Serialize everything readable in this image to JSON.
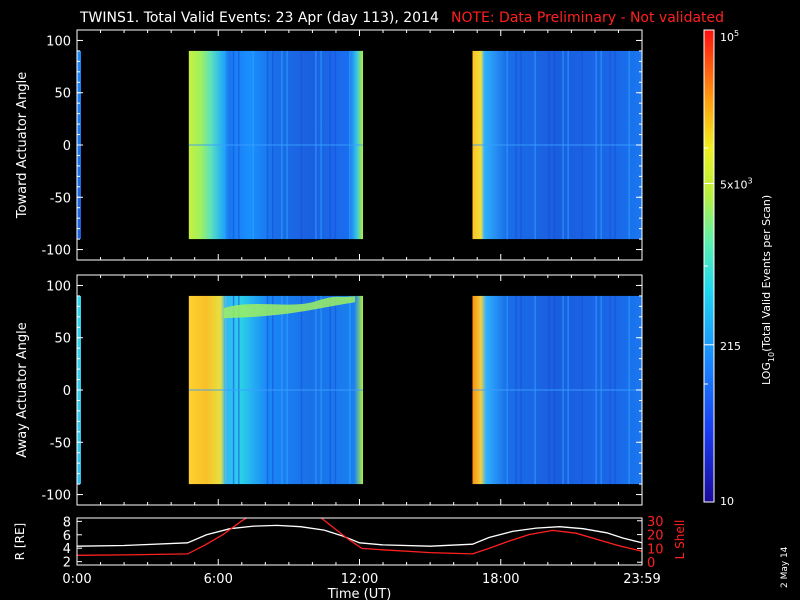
{
  "header": {
    "title": "TWINS1. Total Valid Events: 23 Apr (day 113), 2014",
    "note": "NOTE: Data Preliminary - Not validated",
    "note_color": "#ff2020"
  },
  "side_date": "2 May 14",
  "chart_data": [
    {
      "type": "heatmap",
      "ylabel": "Toward Actuator Angle",
      "xlim": [
        0,
        24
      ],
      "ylim": [
        -110,
        110
      ],
      "yticks": [
        "100",
        "50",
        "0",
        "-50",
        "-100"
      ],
      "data_blocks": [
        {
          "x_start_hours": 4.75,
          "x_end_hours": 12.15,
          "y_range": [
            -90,
            90
          ]
        },
        {
          "x_start_hours": 16.8,
          "x_end_hours": 24.0,
          "y_range": [
            -90,
            90
          ]
        }
      ]
    },
    {
      "type": "heatmap",
      "ylabel": "Away Actuator Angle",
      "xlim": [
        0,
        24
      ],
      "ylim": [
        -110,
        110
      ],
      "yticks": [
        "100",
        "50",
        "0",
        "-50",
        "-100"
      ],
      "data_blocks": [
        {
          "x_start_hours": 4.75,
          "x_end_hours": 12.15,
          "y_range": [
            -90,
            90
          ]
        },
        {
          "x_start_hours": 16.8,
          "x_end_hours": 24.0,
          "y_range": [
            -90,
            90
          ]
        }
      ]
    },
    {
      "type": "line",
      "ylabel_left": "R [RE]",
      "ylabel_right": "L Shell",
      "ylabel_right_color": "#ff2020",
      "yticks_left": [
        "8",
        "6",
        "4",
        "2"
      ],
      "yticks_right": [
        "30",
        "20",
        "10",
        "0"
      ],
      "ylim_left": [
        1.5,
        8.5
      ],
      "ylim_right": [
        -2,
        32
      ],
      "xlabel": "Time (UT)",
      "xticks": [
        "0:00",
        "6:00",
        "12:00",
        "18:00",
        "23:59"
      ],
      "series": [
        {
          "color": "#ffffff",
          "x": [
            0,
            2,
            4.7,
            5.5,
            6.5,
            7.5,
            8.5,
            9.5,
            10.5,
            11.3,
            12,
            13,
            15,
            16.8,
            17.5,
            18.5,
            19.5,
            20.5,
            21.5,
            22.5,
            23.2,
            24
          ],
          "y": [
            4.3,
            4.4,
            4.8,
            6.0,
            6.9,
            7.3,
            7.4,
            7.2,
            6.7,
            5.8,
            4.8,
            4.5,
            4.3,
            4.6,
            5.6,
            6.5,
            7.0,
            7.2,
            6.9,
            6.3,
            5.5,
            4.8
          ]
        },
        {
          "color": "#ff2020",
          "x": [
            0,
            2,
            4.7,
            5.4,
            6.2,
            7.0,
            7.3,
            10.3,
            10.9,
            11.5,
            12.1,
            13,
            15,
            16.8,
            17.5,
            18.3,
            19.2,
            20.2,
            21.2,
            22.2,
            23,
            24
          ],
          "y": [
            5,
            5.3,
            6,
            12,
            20,
            30,
            33,
            33,
            25,
            17,
            10,
            9,
            7,
            6,
            10,
            15,
            20,
            23,
            21,
            16,
            12,
            8
          ]
        }
      ]
    }
  ],
  "colorbar": {
    "label": "LOG10(Total Valid Events per Scan)",
    "label_main": "LOG",
    "label_sub": "10",
    "label_rest": "(Total Valid Events per Scan)",
    "ticks": [
      {
        "base": "10",
        "exp": "5",
        "value": 100000
      },
      {
        "base": "5x10",
        "exp": "3",
        "value": 5000
      },
      {
        "base": "215",
        "exp": "",
        "value": 215
      },
      {
        "base": "10",
        "exp": "",
        "value": 10
      }
    ],
    "log_range": [
      1,
      5
    ]
  },
  "colors": {
    "background": "#000000",
    "axis": "#ffffff",
    "note": "#ff2020"
  }
}
